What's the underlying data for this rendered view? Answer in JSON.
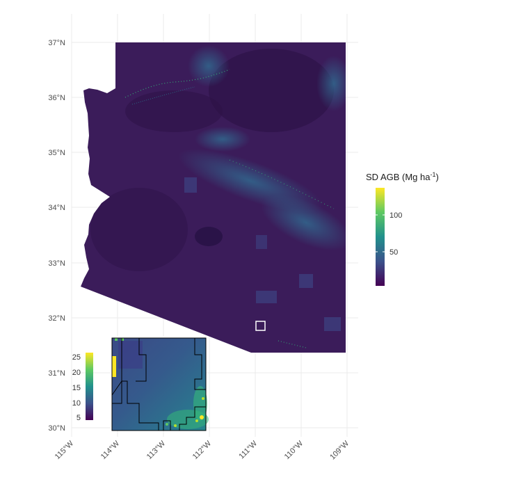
{
  "colors": {
    "background": "#ffffff",
    "grid": "#ebebeb",
    "map_base": "#3b1c5a",
    "inset_highlight": "#ffffff",
    "inset_border": "#000000"
  },
  "map": {
    "latitude_labels": [
      "37°N",
      "36°N",
      "35°N",
      "34°N",
      "33°N",
      "32°N",
      "31°N",
      "30°N"
    ],
    "longitude_labels": [
      "115°W",
      "114°W",
      "113°W",
      "112°W",
      "111°W",
      "110°W",
      "109°W"
    ],
    "legend": {
      "title_main": "SD AGB (Mg ha",
      "title_sup": "-1",
      "title_close": ")",
      "ticks": [
        "100",
        "50"
      ],
      "colormap": "viridis"
    },
    "inset": {
      "legend_ticks": [
        "25",
        "20",
        "15",
        "10",
        "5"
      ],
      "colormap": "viridis",
      "highlight_box_icon": "white-square-outline"
    }
  }
}
